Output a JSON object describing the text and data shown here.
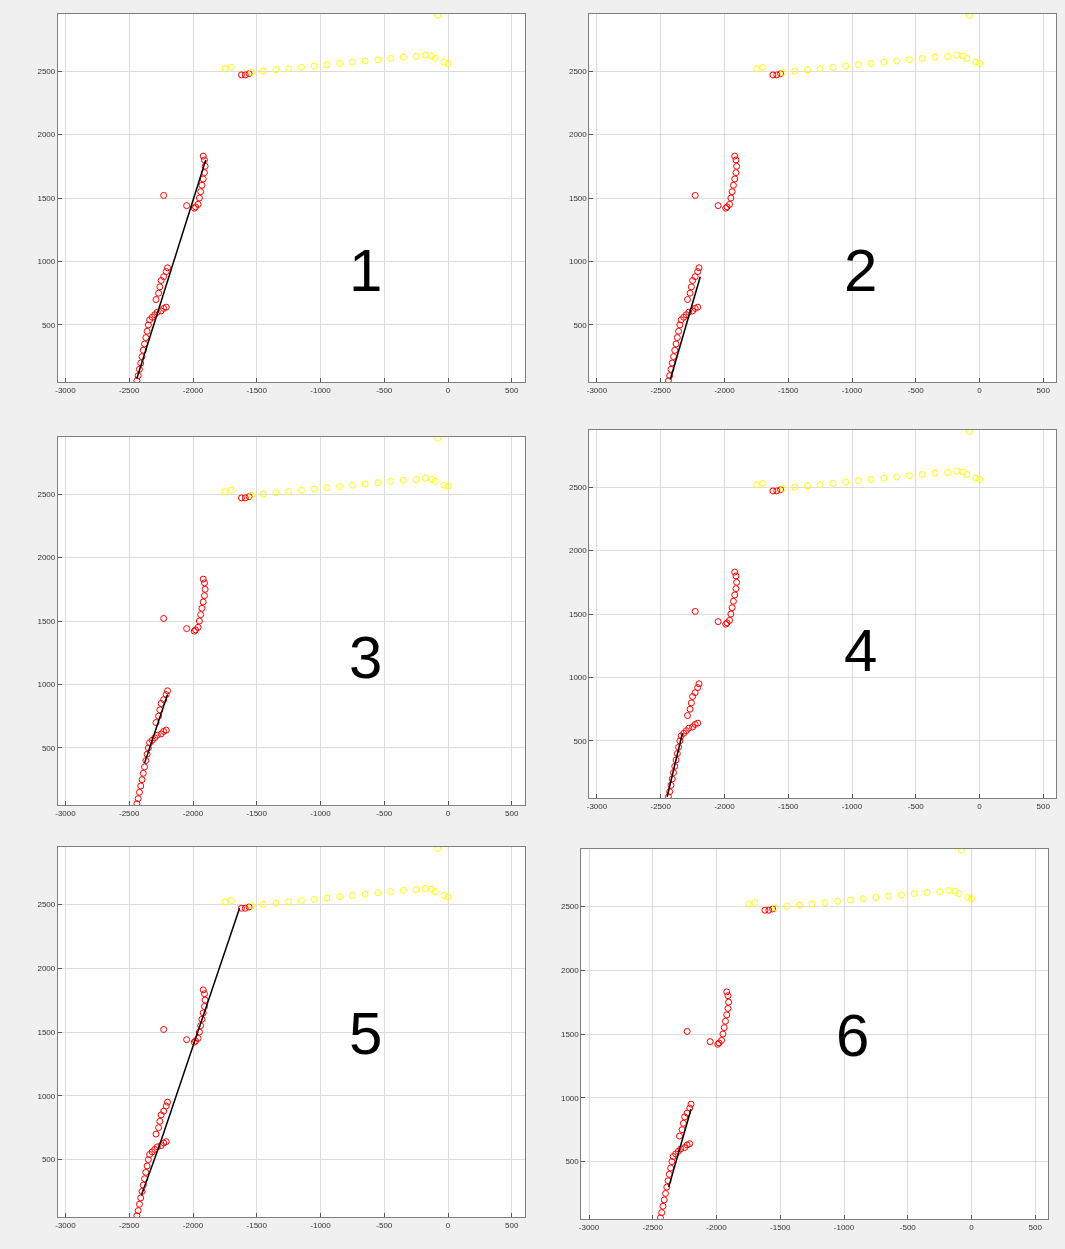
{
  "chart_data": [
    {
      "type": "scatter",
      "annotations": [
        "1"
      ],
      "xlim": [
        -3060,
        600
      ],
      "ylim": [
        50,
        2950
      ],
      "xticks": [
        -3000,
        -2500,
        -2000,
        -1500,
        -1000,
        -500,
        0,
        500
      ],
      "yticks": [
        500,
        1000,
        1500,
        2000,
        2500
      ],
      "grid": true,
      "marker": "circle",
      "series": [
        {
          "color": "#ff0000",
          "x": [
            -2440,
            -2430,
            -2420,
            -2410,
            -2400,
            -2390,
            -2380,
            -2370,
            -2360,
            -2350,
            -2340,
            -2320,
            -2300,
            -2280,
            -2250,
            -2230,
            -2210,
            -2290,
            -2270,
            -2260,
            -2250,
            -2230,
            -2210,
            -2200,
            -2230,
            -2050,
            -1990,
            -1980,
            -1960,
            -1950,
            -1940,
            -1930,
            -1920,
            -1910,
            -1905,
            -1910,
            -1920,
            -1620,
            -1590,
            -1560
          ],
          "values": [
            60,
            100,
            150,
            200,
            250,
            300,
            350,
            400,
            450,
            500,
            540,
            560,
            580,
            600,
            610,
            630,
            640,
            700,
            750,
            800,
            850,
            880,
            920,
            950,
            1520,
            1440,
            1420,
            1430,
            1450,
            1500,
            1550,
            1600,
            1650,
            1700,
            1750,
            1800,
            1830,
            2470,
            2470,
            2480
          ]
        },
        {
          "color": "#ffff00",
          "x": [
            -1750,
            -1700,
            -1540,
            -1450,
            -1350,
            -1250,
            -1150,
            -1050,
            -950,
            -850,
            -750,
            -650,
            -550,
            -450,
            -350,
            -250,
            -180,
            -130,
            -100,
            -30,
            0,
            -80
          ],
          "values": [
            2520,
            2530,
            2490,
            2500,
            2510,
            2520,
            2530,
            2540,
            2550,
            2560,
            2570,
            2580,
            2590,
            2600,
            2610,
            2615,
            2625,
            2620,
            2600,
            2570,
            2560,
            2940
          ]
        },
        {
          "type": "line",
          "marker": "none",
          "color": "#000000",
          "x": [
            -2440,
            -1900
          ],
          "values": [
            80,
            1800
          ]
        }
      ]
    },
    {
      "type": "scatter",
      "annotations": [
        "2"
      ],
      "xlim": [
        -3060,
        600
      ],
      "ylim": [
        50,
        2950
      ],
      "xticks": [
        -3000,
        -2500,
        -2000,
        -1500,
        -1000,
        -500,
        0,
        500
      ],
      "yticks": [
        500,
        1000,
        1500,
        2000,
        2500
      ],
      "grid": true,
      "marker": "circle",
      "series": [
        {
          "color": "#ff0000",
          "x": [
            -2440,
            -2430,
            -2420,
            -2410,
            -2400,
            -2390,
            -2380,
            -2370,
            -2360,
            -2350,
            -2340,
            -2320,
            -2300,
            -2280,
            -2250,
            -2230,
            -2210,
            -2290,
            -2270,
            -2260,
            -2250,
            -2230,
            -2210,
            -2200,
            -2230,
            -2050,
            -1990,
            -1980,
            -1960,
            -1950,
            -1940,
            -1930,
            -1920,
            -1910,
            -1905,
            -1910,
            -1920,
            -1620,
            -1590,
            -1560
          ],
          "values": [
            60,
            100,
            150,
            200,
            250,
            300,
            350,
            400,
            450,
            500,
            540,
            560,
            580,
            600,
            610,
            630,
            640,
            700,
            750,
            800,
            850,
            880,
            920,
            950,
            1520,
            1440,
            1420,
            1430,
            1450,
            1500,
            1550,
            1600,
            1650,
            1700,
            1750,
            1800,
            1830,
            2470,
            2470,
            2480
          ]
        },
        {
          "color": "#ffff00",
          "x": [
            -1750,
            -1700,
            -1540,
            -1450,
            -1350,
            -1250,
            -1150,
            -1050,
            -950,
            -850,
            -750,
            -650,
            -550,
            -450,
            -350,
            -250,
            -180,
            -130,
            -100,
            -30,
            0,
            -80
          ],
          "values": [
            2520,
            2530,
            2490,
            2500,
            2510,
            2520,
            2530,
            2540,
            2550,
            2560,
            2570,
            2580,
            2590,
            2600,
            2610,
            2615,
            2625,
            2620,
            2600,
            2570,
            2560,
            2940
          ]
        },
        {
          "type": "line",
          "marker": "none",
          "color": "#000000",
          "x": [
            -2425,
            -2190
          ],
          "values": [
            70,
            880
          ]
        }
      ]
    },
    {
      "type": "scatter",
      "annotations": [
        "3"
      ],
      "xlim": [
        -3060,
        600
      ],
      "ylim": [
        50,
        2950
      ],
      "xticks": [
        -3000,
        -2500,
        -2000,
        -1500,
        -1000,
        -500,
        0,
        500
      ],
      "yticks": [
        500,
        1000,
        1500,
        2000,
        2500
      ],
      "grid": true,
      "marker": "circle",
      "series": [
        {
          "color": "#ff0000",
          "x": [
            -2440,
            -2430,
            -2420,
            -2410,
            -2400,
            -2390,
            -2380,
            -2370,
            -2360,
            -2350,
            -2340,
            -2320,
            -2300,
            -2280,
            -2250,
            -2230,
            -2210,
            -2290,
            -2270,
            -2260,
            -2250,
            -2230,
            -2210,
            -2200,
            -2230,
            -2050,
            -1990,
            -1980,
            -1960,
            -1950,
            -1940,
            -1930,
            -1920,
            -1910,
            -1905,
            -1910,
            -1920,
            -1620,
            -1590,
            -1560
          ],
          "values": [
            60,
            100,
            150,
            200,
            250,
            300,
            350,
            400,
            450,
            500,
            540,
            560,
            580,
            600,
            610,
            630,
            640,
            700,
            750,
            800,
            850,
            880,
            920,
            950,
            1520,
            1440,
            1420,
            1430,
            1450,
            1500,
            1550,
            1600,
            1650,
            1700,
            1750,
            1800,
            1830,
            2470,
            2470,
            2480
          ]
        },
        {
          "color": "#ffff00",
          "x": [
            -1750,
            -1700,
            -1540,
            -1450,
            -1350,
            -1250,
            -1150,
            -1050,
            -950,
            -850,
            -750,
            -650,
            -550,
            -450,
            -350,
            -250,
            -180,
            -130,
            -100,
            -30,
            0,
            -80
          ],
          "values": [
            2520,
            2530,
            2490,
            2500,
            2510,
            2520,
            2530,
            2540,
            2550,
            2560,
            2570,
            2580,
            2590,
            2600,
            2610,
            2615,
            2625,
            2620,
            2600,
            2570,
            2560,
            2940
          ]
        },
        {
          "type": "line",
          "marker": "none",
          "color": "#000000",
          "x": [
            -2380,
            -2200
          ],
          "values": [
            380,
            920
          ]
        }
      ]
    },
    {
      "type": "scatter",
      "annotations": [
        "4"
      ],
      "xlim": [
        -3060,
        600
      ],
      "ylim": [
        50,
        2950
      ],
      "xticks": [
        -3000,
        -2500,
        -2000,
        -1500,
        -1000,
        -500,
        0,
        500
      ],
      "yticks": [
        500,
        1000,
        1500,
        2000,
        2500
      ],
      "grid": true,
      "marker": "circle",
      "series": [
        {
          "color": "#ff0000",
          "x": [
            -2440,
            -2430,
            -2420,
            -2410,
            -2400,
            -2390,
            -2380,
            -2370,
            -2360,
            -2350,
            -2340,
            -2320,
            -2300,
            -2280,
            -2250,
            -2230,
            -2210,
            -2290,
            -2270,
            -2260,
            -2250,
            -2230,
            -2210,
            -2200,
            -2230,
            -2050,
            -1990,
            -1980,
            -1960,
            -1950,
            -1940,
            -1930,
            -1920,
            -1910,
            -1905,
            -1910,
            -1920,
            -1620,
            -1590,
            -1560
          ],
          "values": [
            60,
            100,
            150,
            200,
            250,
            300,
            350,
            400,
            450,
            500,
            540,
            560,
            580,
            600,
            610,
            630,
            640,
            700,
            750,
            800,
            850,
            880,
            920,
            950,
            1520,
            1440,
            1420,
            1430,
            1450,
            1500,
            1550,
            1600,
            1650,
            1700,
            1750,
            1800,
            1830,
            2470,
            2470,
            2480
          ]
        },
        {
          "color": "#ffff00",
          "x": [
            -1750,
            -1700,
            -1540,
            -1450,
            -1350,
            -1250,
            -1150,
            -1050,
            -950,
            -850,
            -750,
            -650,
            -550,
            -450,
            -350,
            -250,
            -180,
            -130,
            -100,
            -30,
            0,
            -80
          ],
          "values": [
            2520,
            2530,
            2490,
            2500,
            2510,
            2520,
            2530,
            2540,
            2550,
            2560,
            2570,
            2580,
            2590,
            2600,
            2610,
            2615,
            2625,
            2620,
            2600,
            2570,
            2560,
            2940
          ]
        },
        {
          "type": "line",
          "marker": "none",
          "color": "#000000",
          "x": [
            -2450,
            -2330
          ],
          "values": [
            60,
            560
          ]
        }
      ]
    },
    {
      "type": "scatter",
      "annotations": [
        "5"
      ],
      "xlim": [
        -3060,
        600
      ],
      "ylim": [
        50,
        2950
      ],
      "xticks": [
        -3000,
        -2500,
        -2000,
        -1500,
        -1000,
        -500,
        0,
        500
      ],
      "yticks": [
        500,
        1000,
        1500,
        2000,
        2500
      ],
      "grid": true,
      "marker": "circle",
      "series": [
        {
          "color": "#ff0000",
          "x": [
            -2440,
            -2430,
            -2420,
            -2410,
            -2400,
            -2390,
            -2380,
            -2370,
            -2360,
            -2350,
            -2340,
            -2320,
            -2300,
            -2280,
            -2250,
            -2230,
            -2210,
            -2290,
            -2270,
            -2260,
            -2250,
            -2230,
            -2210,
            -2200,
            -2230,
            -2050,
            -1990,
            -1980,
            -1960,
            -1950,
            -1940,
            -1930,
            -1920,
            -1910,
            -1905,
            -1910,
            -1920,
            -1620,
            -1590,
            -1560
          ],
          "values": [
            60,
            100,
            150,
            200,
            250,
            300,
            350,
            400,
            450,
            500,
            540,
            560,
            580,
            600,
            610,
            630,
            640,
            700,
            750,
            800,
            850,
            880,
            920,
            950,
            1520,
            1440,
            1420,
            1430,
            1450,
            1500,
            1550,
            1600,
            1650,
            1700,
            1750,
            1800,
            1830,
            2470,
            2470,
            2480
          ]
        },
        {
          "color": "#ffff00",
          "x": [
            -1750,
            -1700,
            -1540,
            -1450,
            -1350,
            -1250,
            -1150,
            -1050,
            -950,
            -850,
            -750,
            -650,
            -550,
            -450,
            -350,
            -250,
            -180,
            -130,
            -100,
            -30,
            0,
            -80
          ],
          "values": [
            2520,
            2530,
            2490,
            2500,
            2510,
            2520,
            2530,
            2540,
            2550,
            2560,
            2570,
            2580,
            2590,
            2600,
            2610,
            2615,
            2625,
            2620,
            2600,
            2570,
            2560,
            2940
          ]
        },
        {
          "type": "line",
          "marker": "none",
          "color": "#000000",
          "x": [
            -2405,
            -2260,
            -1635
          ],
          "values": [
            220,
            620,
            2470
          ]
        }
      ]
    },
    {
      "type": "scatter",
      "annotations": [
        "6"
      ],
      "xlim": [
        -3060,
        600
      ],
      "ylim": [
        50,
        2950
      ],
      "xticks": [
        -3000,
        -2500,
        -2000,
        -1500,
        -1000,
        -500,
        0,
        500
      ],
      "yticks": [
        500,
        1000,
        1500,
        2000,
        2500
      ],
      "grid": true,
      "marker": "circle",
      "series": [
        {
          "color": "#ff0000",
          "x": [
            -2440,
            -2430,
            -2420,
            -2410,
            -2400,
            -2390,
            -2380,
            -2370,
            -2360,
            -2350,
            -2340,
            -2320,
            -2300,
            -2280,
            -2250,
            -2230,
            -2210,
            -2290,
            -2270,
            -2260,
            -2250,
            -2230,
            -2210,
            -2200,
            -2230,
            -2050,
            -1990,
            -1980,
            -1960,
            -1950,
            -1940,
            -1930,
            -1920,
            -1910,
            -1905,
            -1910,
            -1920,
            -1620,
            -1590,
            -1560
          ],
          "values": [
            60,
            100,
            150,
            200,
            250,
            300,
            350,
            400,
            450,
            500,
            540,
            560,
            580,
            600,
            610,
            630,
            640,
            700,
            750,
            800,
            850,
            880,
            920,
            950,
            1520,
            1440,
            1420,
            1430,
            1450,
            1500,
            1550,
            1600,
            1650,
            1700,
            1750,
            1800,
            1830,
            2470,
            2470,
            2480
          ]
        },
        {
          "color": "#ffff00",
          "x": [
            -1750,
            -1700,
            -1540,
            -1450,
            -1350,
            -1250,
            -1150,
            -1050,
            -950,
            -850,
            -750,
            -650,
            -550,
            -450,
            -350,
            -250,
            -180,
            -130,
            -100,
            -30,
            0,
            -80
          ],
          "values": [
            2520,
            2530,
            2490,
            2500,
            2510,
            2520,
            2530,
            2540,
            2550,
            2560,
            2570,
            2580,
            2590,
            2600,
            2610,
            2615,
            2625,
            2620,
            2600,
            2570,
            2560,
            2940
          ]
        },
        {
          "type": "line",
          "marker": "none",
          "color": "#000000",
          "x": [
            -2375,
            -2200
          ],
          "values": [
            300,
            910
          ]
        }
      ]
    }
  ]
}
